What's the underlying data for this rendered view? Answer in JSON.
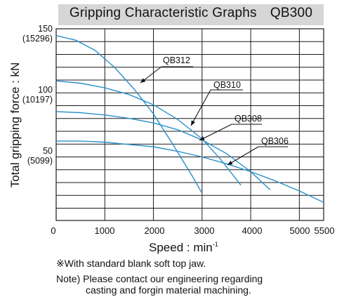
{
  "chart_data": {
    "type": "line",
    "title": "Gripping Characteristic Graphs QB300",
    "xlabel": "Speed : min",
    "xlabel_sup": "-1",
    "ylabel": "Total gripping force : kN",
    "xlim": [
      0,
      5500
    ],
    "ylim": [
      -19,
      150
    ],
    "x_ticks": [
      "0",
      "1000",
      "2000",
      "3000",
      "4000",
      "5000",
      "5500"
    ],
    "x_tick_values": [
      0,
      1000,
      2000,
      3000,
      4000,
      5000,
      5500
    ],
    "y_ticks": [
      {
        "value": 150,
        "label": "150",
        "sublabel": "(15296)"
      },
      {
        "value": 100,
        "label": "100",
        "sublabel": "(10197)"
      },
      {
        "value": 50,
        "label": "50",
        "sublabel": "(5099)"
      }
    ],
    "series": [
      {
        "name": "QB312",
        "x": [
          0,
          400,
          800,
          1200,
          1600,
          2000,
          2400,
          2800,
          3000
        ],
        "y": [
          144,
          140,
          131,
          116,
          97,
          75,
          48,
          20,
          5
        ]
      },
      {
        "name": "QB310",
        "x": [
          0,
          500,
          1000,
          1500,
          2000,
          2500,
          3000,
          3400,
          3800
        ],
        "y": [
          104,
          102,
          98,
          92,
          83,
          70,
          53,
          34,
          12
        ]
      },
      {
        "name": "QB308",
        "x": [
          0,
          500,
          1000,
          1500,
          2000,
          2500,
          3000,
          3500,
          4000,
          4400
        ],
        "y": [
          77,
          76,
          74,
          71,
          67,
          61,
          52,
          40,
          24,
          8
        ]
      },
      {
        "name": "QB306",
        "x": [
          0,
          500,
          1000,
          1500,
          2000,
          2500,
          3000,
          3500,
          4000,
          4500,
          5000,
          5500
        ],
        "y": [
          51,
          51,
          50,
          48,
          46,
          42,
          37,
          31,
          24,
          16,
          7,
          -3
        ]
      }
    ],
    "series_labels": [
      "QB312",
      "QB310",
      "QB308",
      "QB306"
    ],
    "grid": true,
    "colors": {
      "line": "#2a8fcb",
      "grid": "#1a1a1a",
      "title_band": "#d6d6d6"
    }
  },
  "notes": {
    "note1": "※With standard blank soft top jaw.",
    "note2_line1": "Note)  Please contact our engineering regarding",
    "note2_line2": "casting and forgin material machining."
  }
}
